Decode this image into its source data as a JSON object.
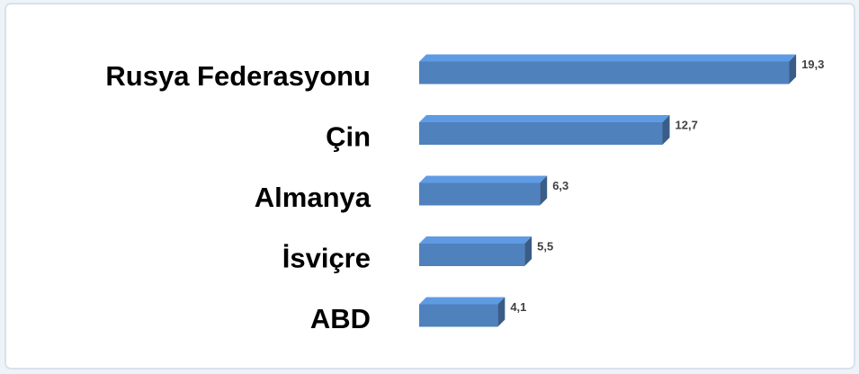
{
  "chart_data": {
    "type": "bar",
    "orientation": "horizontal",
    "categories": [
      "Rusya Federasyonu",
      "Çin",
      "Almanya",
      "İsviçre",
      "ABD"
    ],
    "values": [
      19.3,
      12.7,
      6.3,
      5.5,
      4.1
    ],
    "value_labels": [
      "19,3",
      "12,7",
      "6,3",
      "5,5",
      "4,1"
    ],
    "color": "#4f81bd"
  }
}
